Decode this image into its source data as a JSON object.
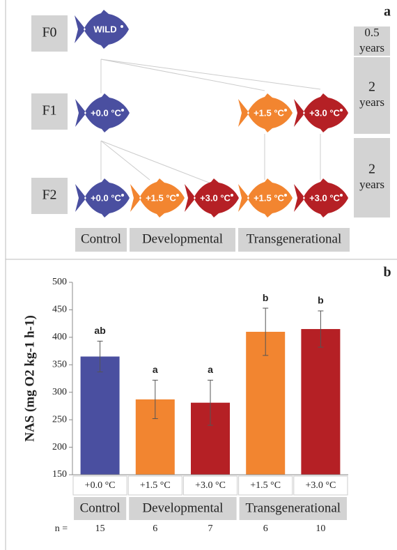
{
  "panel_a": {
    "label": "a",
    "generations": [
      "F0",
      "F1",
      "F2"
    ],
    "durations": [
      {
        "value": "0.5",
        "unit": "years"
      },
      {
        "value": "2",
        "unit": "years"
      },
      {
        "value": "2",
        "unit": "years"
      }
    ],
    "fish": [
      {
        "label": "WILD",
        "color": "#4a4fa0"
      },
      {
        "label": "+0.0 °C",
        "color": "#4a4fa0"
      },
      {
        "label": "+1.5 °C",
        "color": "#f28530"
      },
      {
        "label": "+3.0 °C",
        "color": "#b52025"
      },
      {
        "label": "+0.0 °C",
        "color": "#4a4fa0"
      },
      {
        "label": "+1.5 °C",
        "color": "#f28530"
      },
      {
        "label": "+3.0 °C",
        "color": "#b52025"
      },
      {
        "label": "+1.5 °C",
        "color": "#f28530"
      },
      {
        "label": "+3.0 °C",
        "color": "#b52025"
      }
    ],
    "groups": [
      "Control",
      "Developmental",
      "Transgenerational"
    ]
  },
  "chart_data": {
    "type": "bar",
    "panel_label": "b",
    "y_label": "NAS (mg O2 kg-1 h-1)",
    "categories": [
      "+0.0 °C",
      "+1.5 °C",
      "+3.0 °C",
      "+1.5 °C",
      "+3.0 °C"
    ],
    "values": [
      365,
      287,
      281,
      410,
      415
    ],
    "errors": [
      28,
      35,
      41,
      43,
      33
    ],
    "colors": [
      "#4a4fa0",
      "#f28530",
      "#b52025",
      "#f28530",
      "#b52025"
    ],
    "significance": [
      "ab",
      "a",
      "a",
      "b",
      "b"
    ],
    "groups": [
      "Control",
      "Developmental",
      "Transgenerational"
    ],
    "n_label": "n =",
    "n": [
      15,
      6,
      7,
      6,
      10
    ],
    "ylim": [
      150,
      500
    ],
    "yticks": [
      150,
      200,
      250,
      300,
      350,
      400,
      450,
      500
    ]
  }
}
